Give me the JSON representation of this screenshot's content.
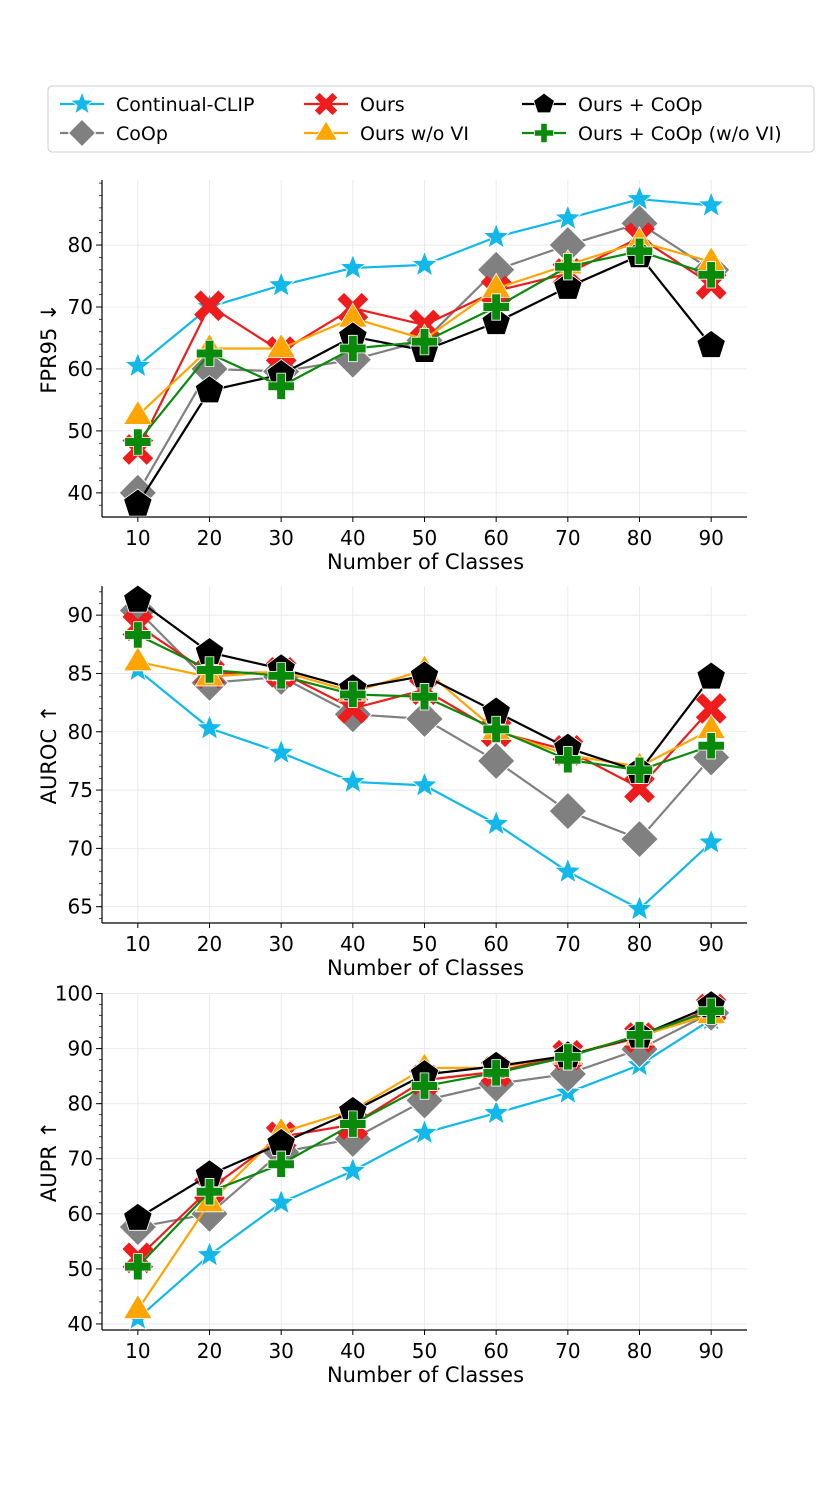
{
  "legend": {
    "entries": [
      {
        "name": "Continual-CLIP",
        "color": "#12b8ea",
        "marker": "star-icon"
      },
      {
        "name": "CoOp",
        "color": "#808080",
        "marker": "diamond-icon"
      },
      {
        "name": "Ours",
        "color": "#ee1c1c",
        "marker": "x-icon"
      },
      {
        "name": "Ours w/o VI",
        "color": "#ffa500",
        "marker": "triangle-icon"
      },
      {
        "name": "Ours + CoOp",
        "color": "#000000",
        "marker": "pentagon-icon"
      },
      {
        "name": "Ours + CoOp (w/o VI)",
        "color": "#0a8a0a",
        "marker": "plus-icon"
      }
    ]
  },
  "chart_data": [
    {
      "type": "line",
      "xlabel": "Number of Classes",
      "ylabel": "FPR95 ↓",
      "x": [
        10,
        20,
        30,
        40,
        50,
        60,
        70,
        80,
        90
      ],
      "xlim": [
        5,
        95
      ],
      "ylim": [
        36.1,
        90.5
      ],
      "yticks": [
        40,
        50,
        60,
        70,
        80
      ],
      "series": [
        {
          "name": "Continual-CLIP",
          "values": [
            60.5,
            70.0,
            73.5,
            76.3,
            76.8,
            81.3,
            84.3,
            87.4,
            86.4
          ]
        },
        {
          "name": "CoOp",
          "values": [
            40.0,
            60.0,
            59.6,
            61.5,
            64.6,
            76.0,
            80.0,
            83.5,
            76.0
          ]
        },
        {
          "name": "Ours",
          "values": [
            47.0,
            70.2,
            62.8,
            69.8,
            67.1,
            72.6,
            75.4,
            81.2,
            73.7
          ]
        },
        {
          "name": "Ours w/o VI",
          "values": [
            52.5,
            63.3,
            63.3,
            68.2,
            64.8,
            73.0,
            76.8,
            80.5,
            77.3
          ]
        },
        {
          "name": "Ours + CoOp",
          "values": [
            38.2,
            56.5,
            59.1,
            65.2,
            63.0,
            67.5,
            73.2,
            78.3,
            63.8
          ]
        },
        {
          "name": "Ours + CoOp (w/o VI)",
          "values": [
            48.2,
            62.5,
            57.2,
            63.3,
            64.4,
            70.0,
            76.5,
            79.0,
            75.2
          ]
        }
      ]
    },
    {
      "type": "line",
      "xlabel": "Number of Classes",
      "ylabel": "AUROC ↑",
      "x": [
        10,
        20,
        30,
        40,
        50,
        60,
        70,
        80,
        90
      ],
      "xlim": [
        5,
        95
      ],
      "ylim": [
        63.6,
        92.5
      ],
      "yticks": [
        65,
        70,
        75,
        80,
        85,
        90
      ],
      "series": [
        {
          "name": "Continual-CLIP",
          "values": [
            85.3,
            80.3,
            78.2,
            75.7,
            75.4,
            72.1,
            68.0,
            64.8,
            70.5
          ]
        },
        {
          "name": "CoOp",
          "values": [
            90.4,
            84.2,
            84.7,
            81.5,
            81.1,
            77.5,
            73.2,
            70.8,
            77.8
          ]
        },
        {
          "name": "Ours",
          "values": [
            89.1,
            85.0,
            85.1,
            82.0,
            83.6,
            80.0,
            78.4,
            75.2,
            82.0
          ]
        },
        {
          "name": "Ours w/o VI",
          "values": [
            86.0,
            84.7,
            85.2,
            83.4,
            85.3,
            80.1,
            78.0,
            77.0,
            80.2
          ]
        },
        {
          "name": "Ours + CoOp",
          "values": [
            91.3,
            86.8,
            85.4,
            83.7,
            84.8,
            81.7,
            78.6,
            76.6,
            84.7
          ]
        },
        {
          "name": "Ours + CoOp (w/o VI)",
          "values": [
            88.3,
            85.3,
            84.8,
            83.2,
            83.0,
            80.2,
            77.6,
            76.7,
            78.8
          ]
        }
      ]
    },
    {
      "type": "line",
      "xlabel": "Number of Classes",
      "ylabel": "AUPR ↑",
      "x": [
        10,
        20,
        30,
        40,
        50,
        60,
        70,
        80,
        90
      ],
      "xlim": [
        5,
        95
      ],
      "ylim": [
        38.9,
        100.1
      ],
      "yticks": [
        40,
        50,
        60,
        70,
        80,
        90,
        100
      ],
      "series": [
        {
          "name": "Continual-CLIP",
          "values": [
            41.0,
            52.5,
            62.0,
            67.8,
            74.7,
            78.3,
            82.0,
            87.0,
            95.3
          ]
        },
        {
          "name": "CoOp",
          "values": [
            57.6,
            60.0,
            71.2,
            73.6,
            80.6,
            83.6,
            85.4,
            89.9,
            96.5
          ]
        },
        {
          "name": "Ours",
          "values": [
            52.0,
            64.5,
            74.0,
            76.2,
            84.3,
            85.8,
            88.8,
            92.0,
            97.2
          ]
        },
        {
          "name": "Ours w/o VI",
          "values": [
            42.6,
            62.0,
            74.8,
            78.8,
            86.5,
            86.5,
            88.8,
            92.3,
            96.2
          ]
        },
        {
          "name": "Ours + CoOp",
          "values": [
            59.2,
            67.1,
            72.8,
            78.6,
            85.3,
            86.8,
            88.7,
            92.3,
            97.8
          ]
        },
        {
          "name": "Ours + CoOp (w/o VI)",
          "values": [
            50.4,
            64.0,
            69.0,
            76.3,
            83.2,
            85.6,
            88.5,
            92.5,
            96.8
          ]
        }
      ]
    }
  ]
}
